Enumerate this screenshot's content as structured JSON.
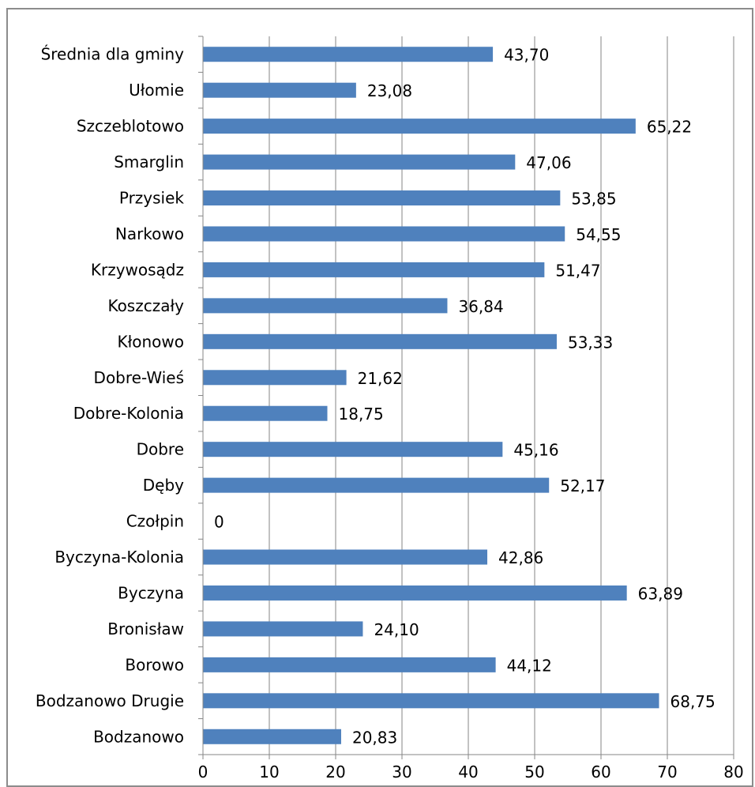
{
  "chart_data": {
    "type": "bar",
    "orientation": "horizontal",
    "title": "",
    "xlabel": "",
    "ylabel": "",
    "categories": [
      "Bodzanowo",
      "Bodzanowo Drugie",
      "Borowo",
      "Bronisław",
      "Byczyna",
      "Byczyna-Kolonia",
      "Czołpin",
      "Dęby",
      "Dobre",
      "Dobre-Kolonia",
      "Dobre-Wieś",
      "Kłonowo",
      "Koszczały",
      "Krzywosądz",
      "Narkowo",
      "Przysiek",
      "Smarglin",
      "Szczeblotowo",
      "Ułomie",
      "Średnia dla gminy"
    ],
    "values": [
      20.83,
      68.75,
      44.12,
      24.1,
      63.89,
      42.86,
      0,
      52.17,
      45.16,
      18.75,
      21.62,
      53.33,
      36.84,
      51.47,
      54.55,
      53.85,
      47.06,
      65.22,
      23.08,
      43.7
    ],
    "data_labels": [
      "20,83",
      "68,75",
      "44,12",
      "24,10",
      "63,89",
      "42,86",
      "0",
      "52,17",
      "45,16",
      "18,75",
      "21,62",
      "53,33",
      "36,84",
      "51,47",
      "54,55",
      "53,85",
      "47,06",
      "65,22",
      "23,08",
      "43,70"
    ],
    "xlim": [
      0,
      80
    ],
    "x_ticks": [
      "0",
      "10",
      "20",
      "30",
      "40",
      "50",
      "60",
      "70",
      "80"
    ],
    "grid": "vertical",
    "legend": "none",
    "colors": {
      "bar": "#4f81bd",
      "grid": "#868686",
      "axis": "#868686"
    }
  }
}
